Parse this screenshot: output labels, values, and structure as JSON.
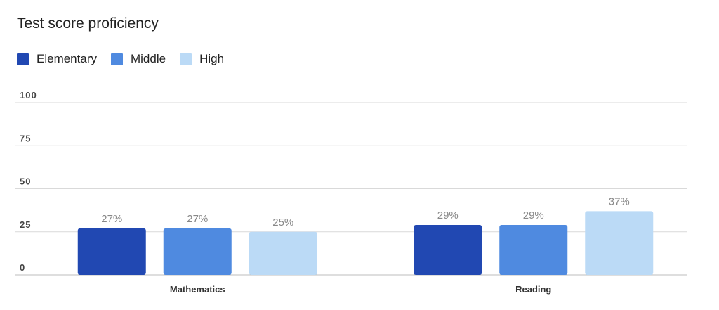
{
  "chart_data": {
    "type": "bar",
    "title": "Test score proficiency",
    "categories": [
      "Mathematics",
      "Reading"
    ],
    "series": [
      {
        "name": "Elementary",
        "values": [
          27,
          29
        ],
        "labels": [
          "27%",
          "29%"
        ],
        "color": "#2148B2"
      },
      {
        "name": "Middle",
        "values": [
          27,
          29
        ],
        "labels": [
          "27%",
          "29%"
        ],
        "color": "#4F8AE0"
      },
      {
        "name": "High",
        "values": [
          25,
          37
        ],
        "labels": [
          "25%",
          "37%"
        ],
        "color": "#BBDAF6"
      }
    ],
    "ylim": [
      0,
      100
    ],
    "yticks": [
      "0",
      "25",
      "50",
      "75",
      "100"
    ],
    "grid": true,
    "legend_position": "top-left"
  }
}
